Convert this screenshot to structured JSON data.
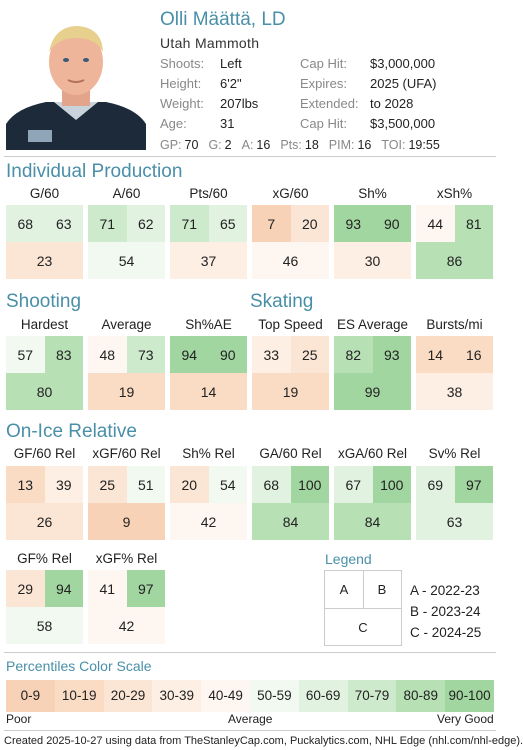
{
  "header": {
    "name": "Olli Määttä, LD",
    "team": "Utah Mammoth",
    "left_keys": [
      "Shoots:",
      "Height:",
      "Weight:",
      "Age:"
    ],
    "left_vals": [
      "Left",
      "6'2\"",
      "207lbs",
      "31"
    ],
    "right_keys": [
      "Cap Hit:",
      "Expires:",
      "Extended:",
      "Cap Hit:"
    ],
    "right_vals": [
      "$3,000,000",
      "2025 (UFA)",
      "to 2028",
      "$3,500,000"
    ],
    "stats": [
      {
        "k": "GP:",
        "v": "70"
      },
      {
        "k": "G:",
        "v": "2"
      },
      {
        "k": "A:",
        "v": "16"
      },
      {
        "k": "Pts:",
        "v": "18"
      },
      {
        "k": "PIM:",
        "v": "16"
      },
      {
        "k": "TOI:",
        "v": "19:55"
      }
    ]
  },
  "sections": {
    "production": "Individual Production",
    "shooting": "Shooting",
    "skating": "Skating",
    "onice": "On-Ice Relative"
  },
  "production": [
    {
      "label": "G/60",
      "a": 68,
      "b": 63,
      "c": 23
    },
    {
      "label": "A/60",
      "a": 71,
      "b": 62,
      "c": 54
    },
    {
      "label": "Pts/60",
      "a": 71,
      "b": 65,
      "c": 37
    },
    {
      "label": "xG/60",
      "a": 7,
      "b": 20,
      "c": 46
    },
    {
      "label": "Sh%",
      "a": 93,
      "b": 90,
      "c": 30
    },
    {
      "label": "xSh%",
      "a": 44,
      "b": 81,
      "c": 86
    }
  ],
  "shooting": [
    {
      "label": "Hardest",
      "a": 57,
      "b": 83,
      "c": 80
    },
    {
      "label": "Average",
      "a": 48,
      "b": 73,
      "c": 19
    },
    {
      "label": "Sh%AE",
      "a": 94,
      "b": 90,
      "c": 14
    }
  ],
  "skating": [
    {
      "label": "Top Speed",
      "a": 33,
      "b": 25,
      "c": 19
    },
    {
      "label": "ES Average",
      "a": 82,
      "b": 93,
      "c": 99
    },
    {
      "label": "Bursts/mi",
      "a": 14,
      "b": 16,
      "c": 38
    }
  ],
  "onice": [
    {
      "label": "GF/60 Rel",
      "a": 13,
      "b": 39,
      "c": 26
    },
    {
      "label": "xGF/60 Rel",
      "a": 25,
      "b": 51,
      "c": 9
    },
    {
      "label": "Sh% Rel",
      "a": 20,
      "b": 54,
      "c": 42
    },
    {
      "label": "GA/60 Rel",
      "a": 68,
      "b": 100,
      "c": 84
    },
    {
      "label": "xGA/60 Rel",
      "a": 67,
      "b": 100,
      "c": 84
    },
    {
      "label": "Sv% Rel",
      "a": 69,
      "b": 97,
      "c": 63
    }
  ],
  "onice2": [
    {
      "label": "GF% Rel",
      "a": 29,
      "b": 94,
      "c": 58
    },
    {
      "label": "xGF% Rel",
      "a": 41,
      "b": 97,
      "c": 42
    }
  ],
  "legend": {
    "title": "Legend",
    "a": "A",
    "b": "B",
    "c": "C",
    "lines": [
      "A - 2022-23",
      "B - 2023-24",
      "C - 2024-25"
    ]
  },
  "scale": {
    "title": "Percentiles Color Scale",
    "bins": [
      "0-9",
      "10-19",
      "20-29",
      "30-39",
      "40-49",
      "50-59",
      "60-69",
      "70-79",
      "80-89",
      "90-100"
    ],
    "colors": [
      "#f8d2b6",
      "#fadcc5",
      "#fbe6d5",
      "#fdefe4",
      "#fef7f1",
      "#f2f9f1",
      "#e2f2e1",
      "#cdeacc",
      "#b7e0b5",
      "#a2d6a0"
    ],
    "poor": "Poor",
    "average": "Average",
    "very_good": "Very Good"
  },
  "footer": "Created 2025-10-27 using data from TheStanleyCap.com, Puckalytics.com, NHL Edge (nhl.com/nhl-edge)."
}
